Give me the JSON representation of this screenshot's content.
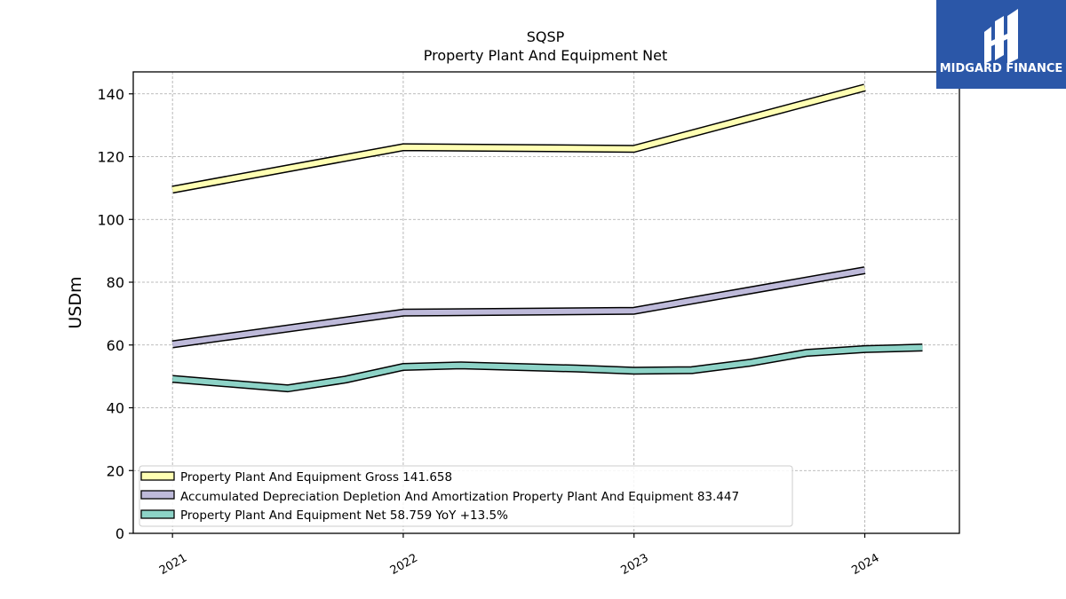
{
  "logo": {
    "text": "MIDGARD FINANCE",
    "bg_color": "#2b57a8"
  },
  "chart_data": {
    "type": "line",
    "title": "SQSP",
    "subtitle": "Property Plant And Equipment Net",
    "ylabel": "USDm",
    "xlabel": "",
    "ylim": [
      0,
      147
    ],
    "yticks": [
      0,
      20,
      40,
      60,
      80,
      100,
      120,
      140
    ],
    "xlim": [
      2020.83,
      2024.41
    ],
    "xticks": [
      2021,
      2022,
      2023,
      2024
    ],
    "xtick_labels": [
      "2021",
      "2022",
      "2023",
      "2024"
    ],
    "grid": true,
    "legend_position": "lower-left",
    "series": [
      {
        "name": "Property Plant And Equipment Gross",
        "legend_value": "141.658",
        "legend_label": "Property Plant And Equipment Gross  141.658",
        "color": "#ffffb3",
        "x": [
          2021.0,
          2022.0,
          2023.0,
          2024.0
        ],
        "y": [
          109.5,
          123.0,
          122.5,
          142.0
        ]
      },
      {
        "name": "Accumulated Depreciation Depletion And Amortization Property Plant And Equipment",
        "legend_value": "83.447",
        "legend_label": "Accumulated Depreciation Depletion And Amortization Property Plant And Equipment  83.447",
        "color": "#bebada",
        "x": [
          2021.0,
          2022.0,
          2023.0,
          2024.0
        ],
        "y": [
          60.2,
          70.3,
          70.9,
          83.8
        ]
      },
      {
        "name": "Property Plant And Equipment Net",
        "legend_value": "58.759",
        "legend_yoy": "YoY +13.5%",
        "legend_label": "Property Plant And Equipment Net  58.759 YoY +13.5%",
        "color": "#8dd3c7",
        "x": [
          2021.0,
          2021.5,
          2021.75,
          2022.0,
          2022.25,
          2022.75,
          2023.0,
          2023.25,
          2023.5,
          2023.75,
          2024.0,
          2024.25
        ],
        "y": [
          49.2,
          46.2,
          49.0,
          53.0,
          53.5,
          52.5,
          51.8,
          52.0,
          54.3,
          57.5,
          58.7,
          59.2
        ]
      }
    ]
  }
}
